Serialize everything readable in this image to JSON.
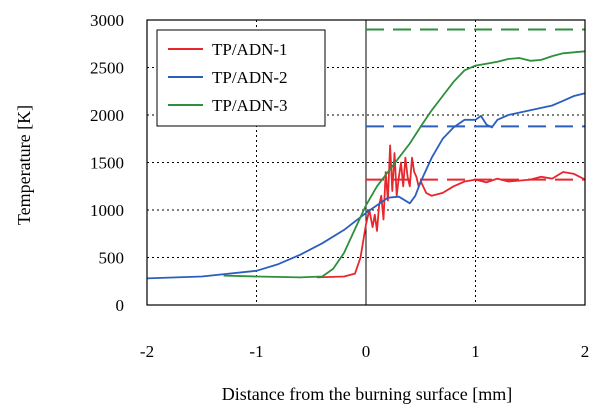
{
  "chart_data": {
    "type": "line",
    "title": "",
    "xlabel": "Distance from the burning surface [mm]",
    "ylabel": "Temperature [K]",
    "xlim": [
      -2,
      2
    ],
    "ylim": [
      0,
      3000
    ],
    "xticks": [
      "-2",
      "-1",
      "0",
      "1",
      "2"
    ],
    "yticks": [
      "0",
      "500",
      "1000",
      "1500",
      "2000",
      "2500",
      "3000"
    ],
    "grid": "dotted",
    "legend_position": "top-left",
    "series": [
      {
        "name": "TP/ADN-1",
        "color": "#e8262d",
        "x": [
          -0.45,
          -0.2,
          -0.1,
          -0.05,
          0.0,
          0.03,
          0.06,
          0.08,
          0.1,
          0.12,
          0.14,
          0.16,
          0.18,
          0.2,
          0.22,
          0.24,
          0.26,
          0.28,
          0.3,
          0.32,
          0.34,
          0.36,
          0.38,
          0.4,
          0.42,
          0.44,
          0.46,
          0.48,
          0.5,
          0.55,
          0.6,
          0.7,
          0.8,
          0.9,
          1.0,
          1.1,
          1.2,
          1.3,
          1.4,
          1.5,
          1.6,
          1.7,
          1.8,
          1.9,
          2.0
        ],
        "y": [
          290,
          300,
          330,
          500,
          850,
          1000,
          820,
          950,
          780,
          1050,
          1150,
          900,
          1400,
          1100,
          1680,
          1200,
          1600,
          1150,
          1350,
          1500,
          1250,
          1550,
          1350,
          1250,
          1550,
          1400,
          1350,
          1250,
          1300,
          1180,
          1150,
          1180,
          1250,
          1300,
          1320,
          1290,
          1330,
          1300,
          1310,
          1320,
          1350,
          1330,
          1400,
          1380,
          1320
        ]
      },
      {
        "name": "TP/ADN-2",
        "color": "#2b5fbf",
        "x": [
          -2.0,
          -1.5,
          -1.0,
          -0.8,
          -0.6,
          -0.4,
          -0.2,
          -0.1,
          0.0,
          0.1,
          0.2,
          0.3,
          0.4,
          0.45,
          0.5,
          0.6,
          0.7,
          0.8,
          0.9,
          1.0,
          1.05,
          1.1,
          1.15,
          1.2,
          1.3,
          1.5,
          1.7,
          1.8,
          1.9,
          2.0
        ],
        "y": [
          280,
          300,
          360,
          430,
          530,
          650,
          790,
          880,
          970,
          1050,
          1130,
          1140,
          1070,
          1150,
          1300,
          1550,
          1750,
          1870,
          1950,
          1950,
          1990,
          1900,
          1870,
          1950,
          2000,
          2050,
          2100,
          2150,
          2200,
          2230
        ]
      },
      {
        "name": "TP/ADN-3",
        "color": "#2e8f3c",
        "x": [
          -1.3,
          -1.0,
          -0.6,
          -0.4,
          -0.3,
          -0.2,
          -0.1,
          0.0,
          0.1,
          0.2,
          0.3,
          0.4,
          0.5,
          0.6,
          0.7,
          0.8,
          0.9,
          1.0,
          1.1,
          1.2,
          1.3,
          1.4,
          1.5,
          1.6,
          1.7,
          1.8,
          1.9,
          2.0
        ],
        "y": [
          310,
          300,
          290,
          300,
          380,
          550,
          800,
          1050,
          1250,
          1400,
          1550,
          1700,
          1880,
          2050,
          2200,
          2350,
          2470,
          2520,
          2540,
          2560,
          2590,
          2600,
          2570,
          2580,
          2620,
          2650,
          2660,
          2670
        ]
      }
    ],
    "reference_lines": [
      {
        "color": "#e8262d",
        "y": 1320,
        "x_from": 0
      },
      {
        "color": "#2b5fbf",
        "y": 1880,
        "x_from": 0
      },
      {
        "color": "#2e8f3c",
        "y": 2900,
        "x_from": 0
      }
    ]
  }
}
